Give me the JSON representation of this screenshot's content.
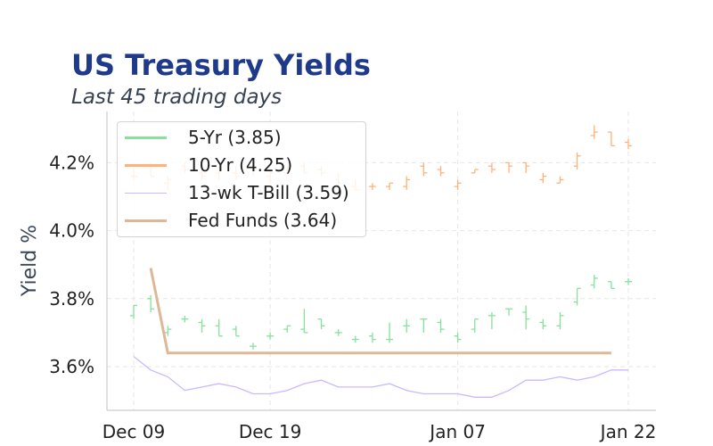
{
  "header": {
    "title": "US Treasury Yields",
    "subtitle": "Last 45 trading days"
  },
  "legend": {
    "items": [
      {
        "label": "5-Yr (3.85)",
        "color": "#86e29b",
        "width": 3
      },
      {
        "label": "10-Yr (4.25)",
        "color": "#ffb27a",
        "width": 3
      },
      {
        "label": "13-wk T-Bill (3.59)",
        "color": "#cbb8ff",
        "width": 1
      },
      {
        "label": "Fed Funds (3.64)",
        "color": "#deb896",
        "width": 3
      }
    ]
  },
  "axes": {
    "ylabel": "Yield %",
    "yticks": [
      "3.6%",
      "3.8%",
      "4.0%",
      "4.2%"
    ],
    "xticks": [
      "Dec 09",
      "Dec 19",
      "Jan 07",
      "Jan 22"
    ]
  },
  "chart_data": {
    "type": "line",
    "title": "US Treasury Yields",
    "subtitle": "Last 45 trading days",
    "xlabel": "",
    "ylabel": "Yield %",
    "ylim": [
      3.48,
      4.35
    ],
    "grid": true,
    "legend_position": "upper left",
    "x_tick_labels": [
      "Dec 09",
      "Dec 19",
      "Jan 07",
      "Jan 22"
    ],
    "x_tick_indices": [
      0,
      8,
      19,
      29
    ],
    "y_tick_values": [
      3.6,
      3.8,
      4.0,
      4.2
    ],
    "n_points": 30,
    "series": [
      {
        "name": "5-Yr",
        "last": 3.85,
        "style": "ohlc",
        "color": "#86e29b",
        "open": [
          3.75,
          3.8,
          3.7,
          3.74,
          3.73,
          3.72,
          3.71,
          3.66,
          3.69,
          3.71,
          3.71,
          3.74,
          3.7,
          3.68,
          3.69,
          3.68,
          3.72,
          3.74,
          3.73,
          3.69,
          3.71,
          3.75,
          3.77,
          3.76,
          3.73,
          3.72,
          3.79,
          3.84,
          3.85,
          3.85
        ],
        "high": [
          3.78,
          3.81,
          3.72,
          3.75,
          3.74,
          3.74,
          3.72,
          3.67,
          3.7,
          3.72,
          3.77,
          3.74,
          3.71,
          3.69,
          3.7,
          3.73,
          3.74,
          3.74,
          3.74,
          3.7,
          3.74,
          3.76,
          3.77,
          3.78,
          3.74,
          3.76,
          3.83,
          3.87,
          3.85,
          3.86
        ],
        "low": [
          3.74,
          3.76,
          3.69,
          3.73,
          3.7,
          3.69,
          3.69,
          3.65,
          3.68,
          3.7,
          3.7,
          3.71,
          3.69,
          3.67,
          3.67,
          3.67,
          3.7,
          3.7,
          3.7,
          3.67,
          3.7,
          3.71,
          3.75,
          3.71,
          3.71,
          3.71,
          3.78,
          3.83,
          3.83,
          3.84
        ],
        "close": [
          3.78,
          3.77,
          3.71,
          3.74,
          3.72,
          3.69,
          3.69,
          3.66,
          3.69,
          3.72,
          3.7,
          3.72,
          3.7,
          3.68,
          3.68,
          3.68,
          3.72,
          3.74,
          3.71,
          3.68,
          3.74,
          3.75,
          3.77,
          3.74,
          3.72,
          3.75,
          3.83,
          3.86,
          3.83,
          3.85
        ]
      },
      {
        "name": "10-Yr",
        "last": 4.25,
        "style": "ohlc",
        "color": "#ffb27a",
        "open": [
          4.16,
          4.19,
          4.14,
          4.19,
          4.17,
          4.17,
          4.17,
          4.18,
          4.16,
          4.17,
          4.19,
          4.18,
          4.15,
          4.13,
          4.13,
          4.13,
          4.13,
          4.19,
          4.18,
          4.13,
          4.17,
          4.19,
          4.2,
          4.2,
          4.15,
          4.14,
          4.19,
          4.28,
          4.29,
          4.26
        ],
        "high": [
          4.18,
          4.2,
          4.16,
          4.2,
          4.19,
          4.19,
          4.19,
          4.2,
          4.18,
          4.19,
          4.2,
          4.19,
          4.17,
          4.15,
          4.14,
          4.14,
          4.16,
          4.2,
          4.19,
          4.15,
          4.18,
          4.2,
          4.2,
          4.2,
          4.17,
          4.16,
          4.23,
          4.31,
          4.29,
          4.27
        ],
        "low": [
          4.15,
          4.16,
          4.12,
          4.17,
          4.15,
          4.15,
          4.15,
          4.16,
          4.14,
          4.16,
          4.17,
          4.16,
          4.13,
          4.12,
          4.12,
          4.12,
          4.12,
          4.16,
          4.16,
          4.12,
          4.17,
          4.17,
          4.17,
          4.17,
          4.14,
          4.14,
          4.18,
          4.27,
          4.25,
          4.24
        ],
        "close": [
          4.16,
          4.16,
          4.15,
          4.18,
          4.16,
          4.18,
          4.16,
          4.18,
          4.17,
          4.18,
          4.17,
          4.17,
          4.14,
          4.12,
          4.13,
          4.14,
          4.15,
          4.17,
          4.17,
          4.14,
          4.18,
          4.18,
          4.19,
          4.19,
          4.16,
          4.15,
          4.22,
          4.29,
          4.25,
          4.25
        ]
      },
      {
        "name": "13-wk T-Bill",
        "last": 3.59,
        "style": "line",
        "color": "#cbb8ff",
        "values": [
          3.63,
          3.59,
          3.57,
          3.53,
          3.54,
          3.55,
          3.54,
          3.52,
          3.52,
          3.53,
          3.55,
          3.56,
          3.54,
          3.54,
          3.54,
          3.55,
          3.53,
          3.52,
          3.52,
          3.52,
          3.51,
          3.51,
          3.53,
          3.56,
          3.56,
          3.57,
          3.56,
          3.57,
          3.59,
          3.59
        ]
      },
      {
        "name": "Fed Funds",
        "last": 3.64,
        "style": "line",
        "color": "#deb896",
        "values": [
          null,
          3.89,
          3.64,
          3.64,
          3.64,
          3.64,
          3.64,
          3.64,
          3.64,
          3.64,
          3.64,
          3.64,
          3.64,
          3.64,
          3.64,
          3.64,
          3.64,
          3.64,
          3.64,
          3.64,
          3.64,
          3.64,
          3.64,
          3.64,
          3.64,
          3.64,
          3.64,
          3.64,
          3.64,
          null
        ]
      }
    ]
  }
}
